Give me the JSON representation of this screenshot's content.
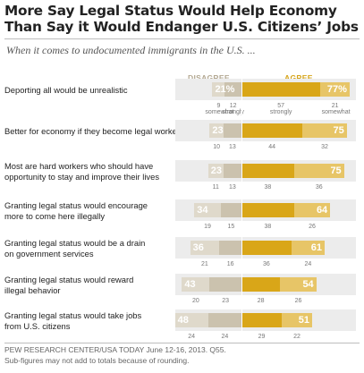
{
  "title_line1": "More Say Legal Status Would Help Economy",
  "title_line2": "Than Say it Would Endanger U.S. Citizens’ Jobs",
  "subtitle": "When it comes to undocumented immigrants in the U.S. ...",
  "col_disagree": "DISAGREE",
  "col_agree": "AGREE",
  "source": "PEW RESEARCH CENTER/USA TODAY June 12-16, 2013. Q55.",
  "note": "Sub-figures may not add to totals because of rounding.",
  "colors": {
    "strongly_disagree": "#cbc2ae",
    "somewhat_disagree": "#dfd9cb",
    "strongly_agree": "#d9a618",
    "somewhat_agree": "#e7c567",
    "column_disagree": "#b3a892",
    "column_agree": "#d6a419"
  },
  "chart_data": {
    "type": "bar",
    "orientation": "horizontal-diverging",
    "categories": [
      "Deporting all would be unrealistic",
      "Better for economy if they become legal workers",
      "Most are hard workers who should have opportunity to stay and improve their lives",
      "Granting legal status would encourage more to come here illegally",
      "Granting legal status would be a drain on government services",
      "Granting legal status would reward illegal behavior",
      "Granting legal status would take jobs from U.S. citizens"
    ],
    "label_lines": [
      [
        "Deporting all would be unrealistic"
      ],
      [
        "Better for economy if they become legal workers"
      ],
      [
        "Most are hard workers who should have",
        "opportunity to stay and improve their lives"
      ],
      [
        "Granting legal status would encourage",
        "more to come here illegally"
      ],
      [
        "Granting legal status would be a drain",
        "on government services"
      ],
      [
        "Granting legal status would reward",
        "illegal behavior"
      ],
      [
        "Granting legal status would take jobs",
        "from U.S. citizens"
      ]
    ],
    "net_labels": {
      "disagree": [
        "21%",
        "23",
        "23",
        "34",
        "36",
        "43",
        "48"
      ],
      "agree": [
        "77%",
        "75",
        "75",
        "64",
        "61",
        "54",
        "51"
      ]
    },
    "series": [
      {
        "name": "Disagree",
        "values": [
          21,
          23,
          23,
          34,
          36,
          43,
          48
        ]
      },
      {
        "name": "Agree",
        "values": [
          77,
          75,
          75,
          64,
          61,
          54,
          51
        ]
      },
      {
        "name": "somewhat",
        "side": "disagree",
        "values": [
          9,
          10,
          11,
          19,
          21,
          20,
          24
        ]
      },
      {
        "name": "strongly",
        "side": "disagree",
        "values": [
          12,
          13,
          13,
          15,
          16,
          23,
          24
        ]
      },
      {
        "name": "strongly",
        "side": "agree",
        "values": [
          57,
          44,
          38,
          38,
          36,
          28,
          29
        ]
      },
      {
        "name": "somewhat",
        "side": "agree",
        "values": [
          21,
          32,
          36,
          26,
          24,
          26,
          22
        ]
      }
    ],
    "legend_labels": {
      "somewhat": "somewhat",
      "strongly": "strongly"
    }
  }
}
